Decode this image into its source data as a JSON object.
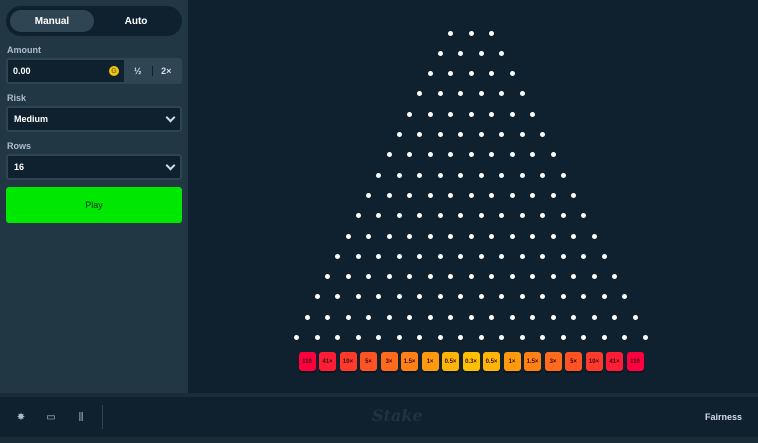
{
  "tabs": {
    "manual": "Manual",
    "auto": "Auto"
  },
  "amount": {
    "label": "Amount",
    "value": "0.00",
    "currency_icon": "G",
    "half": "½",
    "double": "2×"
  },
  "risk": {
    "label": "Risk",
    "value": "Medium"
  },
  "rows": {
    "label": "Rows",
    "value": "16"
  },
  "play_label": "Play",
  "board": {
    "rows": 16,
    "multipliers": [
      "110",
      "41×",
      "10×",
      "5×",
      "3×",
      "1.5×",
      "1×",
      "0.5×",
      "0.3×",
      "0.5×",
      "1×",
      "1.5×",
      "3×",
      "5×",
      "10×",
      "41×",
      "110"
    ],
    "colors": [
      "#ff003f",
      "#ff1d36",
      "#ff3a2d",
      "#ff5324",
      "#ff6a1c",
      "#ff8115",
      "#ff9a0e",
      "#ffb507",
      "#ffc000",
      "#ffb507",
      "#ff9a0e",
      "#ff8115",
      "#ff6a1c",
      "#ff5324",
      "#ff3a2d",
      "#ff1d36",
      "#ff003f"
    ]
  },
  "footer": {
    "logo": "Stake",
    "fairness": "Fairness",
    "icons": [
      "gear-icon",
      "theatre-mode-icon",
      "stats-icon"
    ]
  }
}
